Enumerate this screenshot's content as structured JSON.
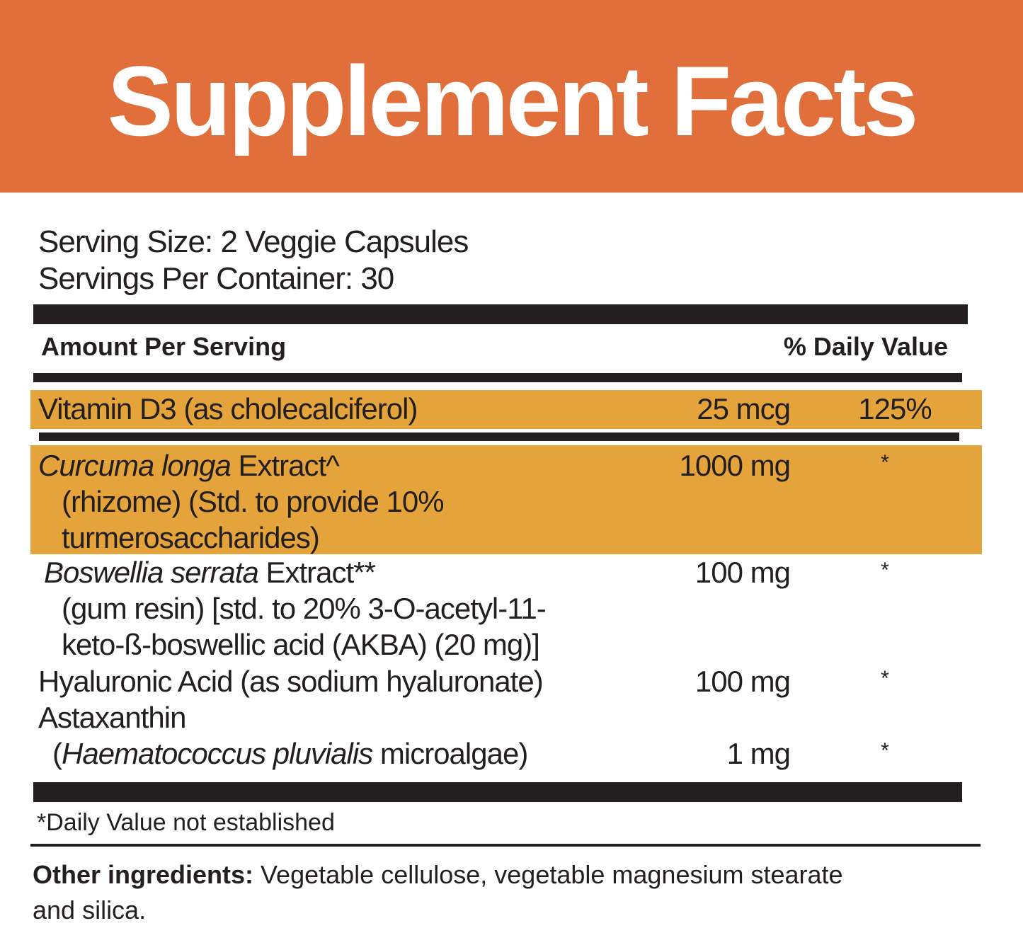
{
  "banner": {
    "title": "Supplement Facts",
    "color": "#e06f3b"
  },
  "serving": {
    "size": "Serving Size: 2 Veggie Capsules",
    "per_container": "Servings Per Container: 30"
  },
  "header": {
    "amount": "Amount Per Serving",
    "daily_value": "% Daily Value"
  },
  "highlight_color": "#e5a43b",
  "rows": [
    {
      "name": "Vitamin D3 (as cholecalciferol)",
      "amount": "25 mcg",
      "dv": "125%"
    },
    {
      "name_italic": "Curcuma longa",
      "name_rest": " Extract^",
      "line2": "(rhizome) (Std. to provide 10%",
      "line3": "turmerosaccharides)",
      "amount": "1000 mg",
      "dv": "*"
    },
    {
      "name_italic": "Boswellia serrata",
      "name_rest": " Extract**",
      "line2": "(gum resin) [std. to 20% 3-O-acetyl-11-",
      "line3": "keto-ß-boswellic acid (AKBA) (20 mg)]",
      "amount": "100 mg",
      "dv": "*"
    },
    {
      "name": "Hyaluronic Acid (as sodium hyaluronate)",
      "amount": "100 mg",
      "dv": "*"
    },
    {
      "name": "Astaxanthin",
      "line2_open": "(",
      "line2_italic": "Haematococcus pluvialis",
      "line2_rest": " microalgae)",
      "amount": "1 mg",
      "dv": "*"
    }
  ],
  "footnote": "*Daily Value not established",
  "other": {
    "label": "Other ingredients:",
    "text": " Vegetable cellulose, vegetable magnesium stearate",
    "text2": "and silica."
  }
}
